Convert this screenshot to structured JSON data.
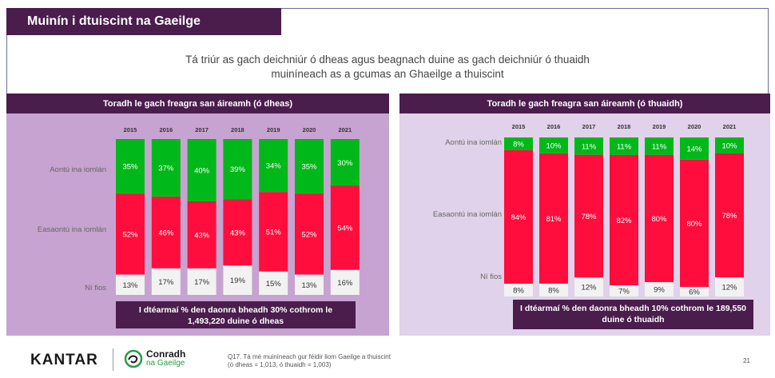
{
  "slide": {
    "title": "Muinín i dtuiscint na Gaeilge",
    "subtitle_line1": "Tá triúr as gach deichniúr ó dheas agus beagnach duine as gach deichniúr ó thuaidh",
    "subtitle_line2": "muiníneach as a gcumas an Ghaeilge a thuiscint"
  },
  "colors": {
    "agree": "#00b819",
    "disagree": "#ff0d3c",
    "dontknow": "#f2f2f2",
    "header": "#4a1d4d"
  },
  "chart_data": [
    {
      "type": "bar",
      "stacked": true,
      "normalized_percent": true,
      "title": "Toradh le gach freagra san áireamh (ó dheas)",
      "categories": [
        "2015",
        "2016",
        "2017",
        "2018",
        "2019",
        "2020",
        "2021"
      ],
      "series": [
        {
          "name": "Aontú ina iomlán",
          "values": [
            35,
            37,
            40,
            39,
            34,
            35,
            30
          ]
        },
        {
          "name": "Easaontú ina iomlán",
          "values": [
            52,
            46,
            43,
            43,
            51,
            52,
            54
          ]
        },
        {
          "name": "Ní fios",
          "values": [
            13,
            17,
            17,
            19,
            15,
            13,
            16
          ]
        }
      ],
      "note": "I dtéarmaí % den daonra bheadh 30% cothrom le 1,493,220 duine ó dheas"
    },
    {
      "type": "bar",
      "stacked": true,
      "normalized_percent": true,
      "title": "Toradh le gach freagra san áireamh (ó thuaidh)",
      "categories": [
        "2015",
        "2016",
        "2017",
        "2018",
        "2019",
        "2020",
        "2021"
      ],
      "series": [
        {
          "name": "Aontú ina iomlán",
          "values": [
            8,
            10,
            11,
            11,
            11,
            14,
            10
          ]
        },
        {
          "name": "Easaontú ina iomlán",
          "values": [
            84,
            81,
            78,
            82,
            80,
            80,
            78
          ]
        },
        {
          "name": "Ní fios",
          "values": [
            8,
            8,
            12,
            7,
            9,
            6,
            12
          ]
        }
      ],
      "note": "I dtéarmaí % den daonra bheadh 10% cothrom le 189,550 duine ó thuaidh"
    }
  ],
  "footer": {
    "kantar": "KANTAR",
    "conradh_line1": "Conradh",
    "conradh_line2": "na Gaeilge",
    "question_line1": "Q17. Tá mé muiníneach gur féidir liom Gaeilge a thuiscint",
    "question_line2": "(ó dheas = 1,013, ó thuaidh = 1,003)",
    "page": "21"
  }
}
